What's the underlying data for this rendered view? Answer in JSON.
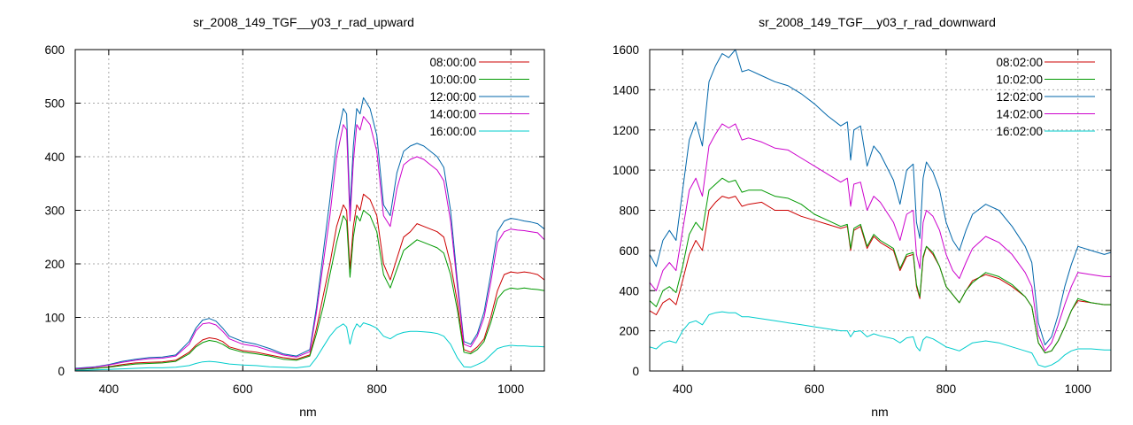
{
  "chart_data": [
    {
      "type": "line",
      "title": "sr_2008_149_TGF__y03_r_rad_upward",
      "xlabel": "nm",
      "ylabel": "",
      "xlim": [
        350,
        1050
      ],
      "ylim": [
        0,
        600
      ],
      "xticks": [
        400,
        600,
        800,
        1000
      ],
      "yticks": [
        0,
        100,
        200,
        300,
        400,
        500,
        600
      ],
      "grid": true,
      "legend_position": "top-right",
      "x": [
        350,
        380,
        400,
        420,
        440,
        460,
        480,
        500,
        520,
        530,
        540,
        550,
        560,
        570,
        580,
        600,
        620,
        640,
        660,
        680,
        700,
        710,
        720,
        730,
        740,
        750,
        755,
        760,
        765,
        770,
        775,
        780,
        790,
        800,
        810,
        820,
        830,
        840,
        850,
        860,
        870,
        880,
        890,
        900,
        910,
        920,
        930,
        940,
        950,
        960,
        970,
        980,
        990,
        1000,
        1010,
        1020,
        1030,
        1040,
        1050
      ],
      "series": [
        {
          "name": "08:00:00",
          "color": "#cc0000",
          "values": [
            3,
            5,
            8,
            12,
            15,
            16,
            17,
            20,
            35,
            48,
            58,
            62,
            60,
            55,
            45,
            38,
            35,
            30,
            25,
            22,
            30,
            80,
            140,
            200,
            270,
            310,
            300,
            190,
            270,
            310,
            300,
            330,
            320,
            290,
            200,
            170,
            210,
            250,
            260,
            275,
            270,
            265,
            260,
            250,
            200,
            130,
            40,
            35,
            45,
            60,
            100,
            150,
            180,
            185,
            183,
            185,
            183,
            180,
            170
          ]
        },
        {
          "name": "10:00:00",
          "color": "#009900",
          "values": [
            3,
            5,
            7,
            10,
            13,
            14,
            15,
            18,
            32,
            45,
            53,
            57,
            55,
            50,
            42,
            35,
            32,
            28,
            22,
            20,
            28,
            70,
            120,
            180,
            240,
            290,
            280,
            175,
            250,
            290,
            280,
            300,
            290,
            260,
            180,
            155,
            190,
            225,
            235,
            245,
            240,
            235,
            230,
            220,
            180,
            115,
            35,
            32,
            40,
            55,
            90,
            135,
            150,
            155,
            153,
            155,
            153,
            152,
            150
          ]
        },
        {
          "name": "12:00:00",
          "color": "#0066aa",
          "values": [
            5,
            8,
            12,
            18,
            22,
            25,
            26,
            30,
            55,
            80,
            95,
            98,
            93,
            80,
            65,
            55,
            50,
            42,
            32,
            28,
            40,
            120,
            220,
            320,
            430,
            490,
            480,
            300,
            420,
            490,
            480,
            510,
            490,
            440,
            310,
            290,
            370,
            410,
            420,
            425,
            420,
            410,
            400,
            380,
            300,
            170,
            55,
            50,
            70,
            110,
            180,
            260,
            280,
            285,
            283,
            280,
            278,
            275,
            265
          ]
        },
        {
          "name": "14:00:00",
          "color": "#cc00cc",
          "values": [
            4,
            7,
            11,
            16,
            20,
            23,
            24,
            28,
            50,
            75,
            88,
            90,
            86,
            74,
            60,
            50,
            46,
            38,
            30,
            26,
            36,
            110,
            200,
            290,
            400,
            460,
            450,
            280,
            390,
            460,
            450,
            475,
            460,
            410,
            290,
            270,
            340,
            385,
            395,
            400,
            395,
            385,
            375,
            355,
            280,
            160,
            50,
            45,
            65,
            100,
            165,
            240,
            260,
            265,
            263,
            262,
            260,
            258,
            245
          ]
        },
        {
          "name": "16:00:00",
          "color": "#00cccc",
          "values": [
            1,
            2,
            3,
            4,
            5,
            6,
            6,
            7,
            10,
            14,
            17,
            18,
            17,
            15,
            13,
            11,
            10,
            8,
            7,
            6,
            9,
            25,
            45,
            65,
            80,
            88,
            82,
            50,
            75,
            88,
            82,
            90,
            86,
            80,
            65,
            60,
            68,
            72,
            74,
            74,
            73,
            72,
            70,
            65,
            50,
            25,
            8,
            7,
            12,
            18,
            30,
            42,
            46,
            48,
            47,
            47,
            46,
            46,
            45
          ]
        }
      ]
    },
    {
      "type": "line",
      "title": "sr_2008_149_TGF__y03_r_rad_downward",
      "xlabel": "nm",
      "ylabel": "",
      "xlim": [
        350,
        1050
      ],
      "ylim": [
        0,
        1600
      ],
      "xticks": [
        400,
        600,
        800,
        1000
      ],
      "yticks": [
        0,
        200,
        400,
        600,
        800,
        1000,
        1200,
        1400,
        1600
      ],
      "grid": true,
      "legend_position": "top-right",
      "x": [
        350,
        360,
        370,
        380,
        390,
        400,
        410,
        420,
        430,
        440,
        450,
        460,
        470,
        480,
        490,
        500,
        520,
        540,
        560,
        580,
        600,
        620,
        640,
        650,
        655,
        660,
        670,
        680,
        690,
        700,
        720,
        730,
        740,
        750,
        755,
        760,
        765,
        770,
        780,
        790,
        800,
        810,
        820,
        830,
        840,
        860,
        880,
        900,
        920,
        930,
        940,
        950,
        960,
        970,
        980,
        990,
        1000,
        1020,
        1040,
        1050
      ],
      "series": [
        {
          "name": "08:02:00",
          "color": "#cc0000",
          "values": [
            300,
            280,
            340,
            360,
            330,
            450,
            580,
            650,
            600,
            800,
            840,
            870,
            860,
            870,
            820,
            830,
            840,
            800,
            800,
            770,
            750,
            730,
            710,
            720,
            600,
            700,
            720,
            610,
            670,
            640,
            600,
            500,
            570,
            580,
            420,
            360,
            560,
            620,
            580,
            520,
            420,
            380,
            340,
            400,
            450,
            480,
            460,
            420,
            370,
            320,
            140,
            90,
            100,
            150,
            220,
            300,
            350,
            340,
            330,
            330
          ]
        },
        {
          "name": "10:02:00",
          "color": "#009900",
          "values": [
            350,
            320,
            400,
            420,
            390,
            520,
            680,
            740,
            700,
            900,
            930,
            960,
            940,
            950,
            890,
            900,
            900,
            870,
            860,
            830,
            780,
            750,
            720,
            730,
            610,
            710,
            730,
            620,
            680,
            650,
            610,
            510,
            580,
            590,
            430,
            370,
            570,
            620,
            590,
            520,
            420,
            380,
            340,
            400,
            440,
            490,
            470,
            430,
            370,
            320,
            140,
            90,
            100,
            150,
            220,
            300,
            360,
            340,
            330,
            330
          ]
        },
        {
          "name": "12:02:00",
          "color": "#0066aa",
          "values": [
            580,
            520,
            650,
            700,
            650,
            900,
            1150,
            1240,
            1120,
            1440,
            1520,
            1580,
            1560,
            1600,
            1490,
            1500,
            1470,
            1440,
            1420,
            1380,
            1330,
            1270,
            1220,
            1240,
            1050,
            1200,
            1220,
            1020,
            1120,
            1080,
            950,
            830,
            1000,
            1030,
            740,
            660,
            960,
            1040,
            990,
            900,
            740,
            650,
            600,
            700,
            780,
            830,
            800,
            720,
            620,
            540,
            240,
            130,
            170,
            280,
            420,
            530,
            620,
            600,
            580,
            590
          ]
        },
        {
          "name": "14:02:00",
          "color": "#cc00cc",
          "values": [
            440,
            400,
            500,
            540,
            500,
            700,
            900,
            960,
            870,
            1120,
            1180,
            1230,
            1210,
            1230,
            1150,
            1160,
            1140,
            1110,
            1100,
            1060,
            1020,
            980,
            940,
            960,
            820,
            930,
            940,
            800,
            870,
            840,
            740,
            650,
            780,
            800,
            580,
            510,
            740,
            800,
            770,
            700,
            580,
            500,
            460,
            540,
            610,
            670,
            640,
            580,
            490,
            420,
            180,
            100,
            140,
            230,
            330,
            420,
            490,
            480,
            470,
            470
          ]
        },
        {
          "name": "16:02:00",
          "color": "#00cccc",
          "values": [
            120,
            110,
            140,
            150,
            140,
            200,
            240,
            250,
            230,
            280,
            290,
            295,
            290,
            290,
            270,
            270,
            260,
            250,
            240,
            230,
            220,
            210,
            200,
            200,
            170,
            195,
            200,
            170,
            185,
            175,
            160,
            140,
            165,
            170,
            120,
            100,
            155,
            170,
            160,
            140,
            120,
            110,
            100,
            120,
            140,
            150,
            140,
            120,
            100,
            90,
            30,
            20,
            30,
            50,
            80,
            100,
            110,
            110,
            105,
            105
          ]
        }
      ]
    }
  ]
}
